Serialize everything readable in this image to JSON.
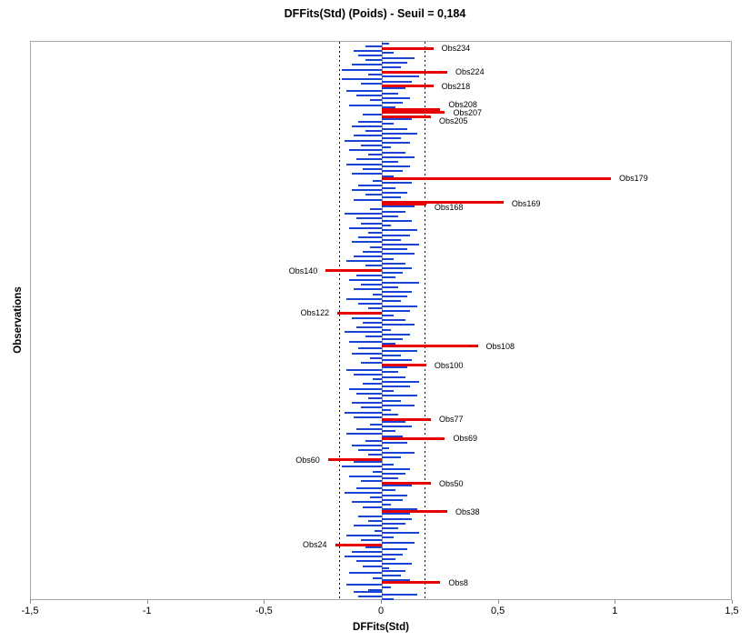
{
  "title": "DFFits(Std) (Poids) - Seuil = 0,184",
  "chart_data": {
    "type": "bar",
    "orientation": "horizontal",
    "title": "DFFits(Std) (Poids) - Seuil = 0,184",
    "xlabel": "DFFits(Std)",
    "ylabel": "Observations",
    "xlim": [
      -1.5,
      1.5
    ],
    "x_ticks": [
      "-1,5",
      "-1",
      "-0,5",
      "0",
      "0,5",
      "1",
      "1,5"
    ],
    "x_tick_values": [
      -1.5,
      -1,
      -0.5,
      0,
      0.5,
      1,
      1.5
    ],
    "threshold": 0.184,
    "threshold_label": "Seuil = 0,184",
    "n_observations": 236,
    "grid": false,
    "legend": "none",
    "values": [
      0.05,
      -0.1,
      0.15,
      -0.12,
      -0.06,
      0.04,
      -0.15,
      0.25,
      0.12,
      -0.04,
      0.08,
      -0.14,
      0.1,
      0.03,
      -0.08,
      0.13,
      -0.11,
      0.06,
      -0.16,
      0.09,
      -0.13,
      0.11,
      -0.07,
      -0.2,
      0.14,
      -0.09,
      0.05,
      -0.15,
      0.16,
      -0.03,
      0.07,
      -0.12,
      0.1,
      -0.06,
      0.13,
      -0.1,
      0.12,
      0.28,
      0.15,
      -0.08,
      0.04,
      -0.13,
      0.09,
      -0.05,
      0.11,
      -0.16,
      0.06,
      -0.11,
      0.13,
      0.21,
      -0.09,
      0.07,
      -0.14,
      0.1,
      -0.04,
      0.12,
      -0.17,
      0.05,
      -0.12,
      -0.23,
      0.08,
      -0.06,
      0.14,
      -0.1,
      0.03,
      -0.13,
      0.11,
      -0.07,
      0.27,
      0.09,
      -0.15,
      0.06,
      -0.11,
      0.13,
      -0.05,
      0.1,
      0.21,
      -0.12,
      0.07,
      -0.16,
      0.04,
      -0.09,
      0.14,
      -0.13,
      0.08,
      -0.06,
      0.15,
      -0.11,
      0.05,
      -0.14,
      0.12,
      -0.08,
      0.16,
      -0.04,
      0.1,
      -0.12,
      0.07,
      -0.15,
      0.11,
      0.19,
      -0.09,
      0.13,
      -0.05,
      0.08,
      -0.13,
      0.15,
      -0.1,
      0.41,
      0.06,
      -0.14,
      0.09,
      -0.07,
      0.12,
      -0.16,
      0.04,
      -0.11,
      0.14,
      -0.08,
      0.1,
      -0.13,
      0.05,
      -0.19,
      0.12,
      -0.06,
      0.15,
      -0.1,
      0.08,
      -0.15,
      0.11,
      -0.04,
      0.13,
      -0.12,
      0.07,
      -0.09,
      0.16,
      -0.14,
      0.06,
      -0.11,
      0.09,
      -0.24,
      0.13,
      -0.07,
      0.1,
      -0.15,
      0.05,
      -0.12,
      0.14,
      -0.08,
      0.11,
      -0.05,
      0.16,
      -0.13,
      0.08,
      -0.1,
      0.12,
      -0.06,
      0.15,
      -0.14,
      0.04,
      -0.09,
      0.13,
      -0.11,
      0.07,
      -0.16,
      0.1,
      -0.05,
      0.14,
      0.19,
      0.52,
      -0.12,
      0.08,
      -0.07,
      0.11,
      -0.13,
      0.06,
      -0.1,
      0.13,
      -0.04,
      0.98,
      0.05,
      -0.13,
      0.09,
      -0.08,
      0.12,
      -0.15,
      0.07,
      -0.11,
      0.14,
      -0.06,
      0.1,
      -0.14,
      0.04,
      -0.09,
      0.12,
      -0.16,
      0.08,
      -0.12,
      0.15,
      -0.07,
      0.11,
      -0.13,
      0.05,
      -0.1,
      0.13,
      0.21,
      -0.08,
      0.27,
      0.25,
      0.06,
      -0.14,
      0.09,
      -0.05,
      0.12,
      -0.11,
      0.07,
      -0.15,
      0.1,
      0.22,
      -0.09,
      0.13,
      -0.17,
      0.16,
      -0.06,
      0.28,
      -0.17,
      0.08,
      -0.13,
      0.11,
      -0.07,
      0.14,
      -0.1,
      0.05,
      -0.12,
      0.22,
      -0.07,
      0.03
    ],
    "flagged": [
      {
        "obs": 8,
        "label": "Obs8",
        "value": 0.25
      },
      {
        "obs": 24,
        "label": "Obs24",
        "value": -0.2
      },
      {
        "obs": 38,
        "label": "Obs38",
        "value": 0.28
      },
      {
        "obs": 50,
        "label": "Obs50",
        "value": 0.21
      },
      {
        "obs": 60,
        "label": "Obs60",
        "value": -0.23
      },
      {
        "obs": 69,
        "label": "Obs69",
        "value": 0.27
      },
      {
        "obs": 77,
        "label": "Obs77",
        "value": 0.21
      },
      {
        "obs": 100,
        "label": "Obs100",
        "value": 0.19
      },
      {
        "obs": 108,
        "label": "Obs108",
        "value": 0.41
      },
      {
        "obs": 122,
        "label": "Obs122",
        "value": -0.19
      },
      {
        "obs": 140,
        "label": "Obs140",
        "value": -0.24
      },
      {
        "obs": 168,
        "label": "Obs168",
        "value": 0.19,
        "dy": 3
      },
      {
        "obs": 169,
        "label": "Obs169",
        "value": 0.52,
        "dy": 2
      },
      {
        "obs": 179,
        "label": "Obs179",
        "value": 0.98
      },
      {
        "obs": 205,
        "label": "Obs205",
        "value": 0.21,
        "dy": 4
      },
      {
        "obs": 207,
        "label": "Obs207",
        "value": 0.27,
        "dy": 1
      },
      {
        "obs": 208,
        "label": "Obs208",
        "value": 0.25,
        "dy": -6
      },
      {
        "obs": 218,
        "label": "Obs218",
        "value": 0.22
      },
      {
        "obs": 224,
        "label": "Obs224",
        "value": 0.28
      },
      {
        "obs": 234,
        "label": "Obs234",
        "value": 0.22
      }
    ],
    "colors": {
      "bar": "#1b44d5",
      "flagged_bar": "#e60000",
      "zero_line": "#8c8c8c",
      "threshold_line": "#000000",
      "frame": "#a6a6a6"
    }
  }
}
